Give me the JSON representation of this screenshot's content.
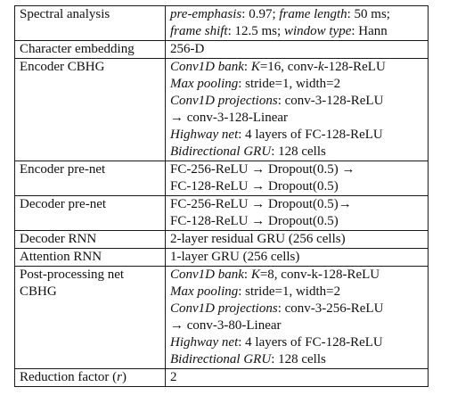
{
  "table": {
    "rows": [
      {
        "key": [
          "Spectral analysis"
        ],
        "val": [
          [
            {
              "t": "pre-emphasis",
              "i": true
            },
            {
              "t": ": 0.97; "
            },
            {
              "t": "frame length",
              "i": true
            },
            {
              "t": ": 50 ms;"
            }
          ],
          [
            {
              "t": "frame shift",
              "i": true
            },
            {
              "t": ": 12.5 ms; "
            },
            {
              "t": "window type",
              "i": true
            },
            {
              "t": ": Hann"
            }
          ]
        ]
      },
      {
        "key": [
          "Character embedding"
        ],
        "val": [
          [
            {
              "t": "256-D"
            }
          ]
        ]
      },
      {
        "key": [
          "Encoder CBHG"
        ],
        "val": [
          [
            {
              "t": "Conv1D bank",
              "i": true
            },
            {
              "t": ": "
            },
            {
              "t": "K",
              "i": true
            },
            {
              "t": "=16, conv-"
            },
            {
              "t": "k",
              "i": true
            },
            {
              "t": "-128-ReLU"
            }
          ],
          [
            {
              "t": "Max pooling",
              "i": true
            },
            {
              "t": ": stride=1, width=2"
            }
          ],
          [
            {
              "t": "Conv1D projections",
              "i": true
            },
            {
              "t": ": conv-3-128-ReLU"
            }
          ],
          [
            {
              "t": "→ conv-3-128-Linear"
            }
          ],
          [
            {
              "t": "Highway net",
              "i": true
            },
            {
              "t": ": 4 layers of FC-128-ReLU"
            }
          ],
          [
            {
              "t": "Bidirectional GRU",
              "i": true
            },
            {
              "t": ": 128 cells"
            }
          ]
        ]
      },
      {
        "key": [
          "Encoder pre-net"
        ],
        "val": [
          [
            {
              "t": "FC-256-ReLU → Dropout(0.5) →"
            }
          ],
          [
            {
              "t": "FC-128-ReLU → Dropout(0.5)"
            }
          ]
        ]
      },
      {
        "key": [
          "Decoder pre-net"
        ],
        "val": [
          [
            {
              "t": "FC-256-ReLU → Dropout(0.5)→"
            }
          ],
          [
            {
              "t": "FC-128-ReLU → Dropout(0.5)"
            }
          ]
        ]
      },
      {
        "key": [
          "Decoder RNN"
        ],
        "val": [
          [
            {
              "t": "2-layer residual GRU (256 cells)"
            }
          ]
        ]
      },
      {
        "key": [
          "Attention RNN"
        ],
        "val": [
          [
            {
              "t": "1-layer GRU (256 cells)"
            }
          ]
        ]
      },
      {
        "key": [
          "Post-processing net",
          "CBHG"
        ],
        "val": [
          [
            {
              "t": "Conv1D bank",
              "i": true
            },
            {
              "t": ": "
            },
            {
              "t": "K",
              "i": true
            },
            {
              "t": "=8, conv-k-128-ReLU"
            }
          ],
          [
            {
              "t": "Max pooling",
              "i": true
            },
            {
              "t": ": stride=1, width=2"
            }
          ],
          [
            {
              "t": "Conv1D projections",
              "i": true
            },
            {
              "t": ": conv-3-256-ReLU"
            }
          ],
          [
            {
              "t": "→ conv-3-80-Linear"
            }
          ],
          [
            {
              "t": "Highway net",
              "i": true
            },
            {
              "t": ": 4 layers of FC-128-ReLU"
            }
          ],
          [
            {
              "t": "Bidirectional GRU",
              "i": true
            },
            {
              "t": ": 128 cells"
            }
          ]
        ]
      },
      {
        "key": [
          "Reduction factor (",
          {
            "t": "r",
            "i": true
          },
          ")"
        ],
        "val": [
          [
            {
              "t": "2"
            }
          ]
        ]
      }
    ]
  }
}
